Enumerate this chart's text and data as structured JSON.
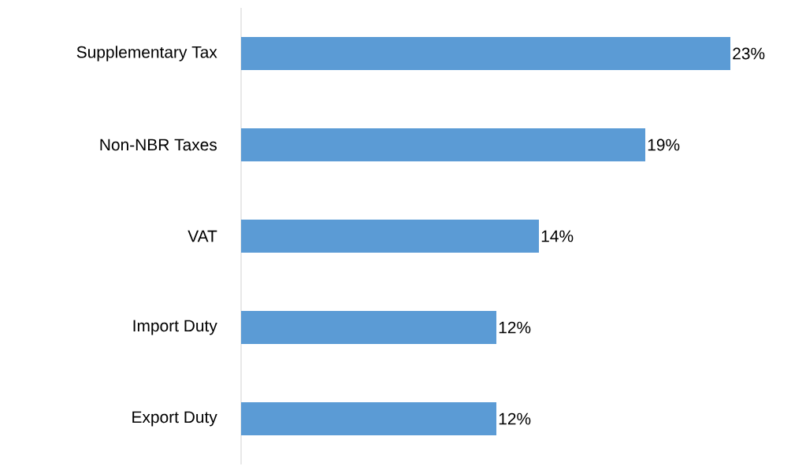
{
  "chart_data": {
    "type": "bar",
    "orientation": "horizontal",
    "categories": [
      "Supplementary Tax",
      "Non-NBR Taxes",
      "VAT",
      "Import Duty",
      "Export Duty"
    ],
    "values": [
      23,
      19,
      14,
      12,
      12
    ],
    "value_labels": [
      "23%",
      "19%",
      "14%",
      "12%",
      "12%"
    ],
    "color": "#5b9bd5"
  }
}
